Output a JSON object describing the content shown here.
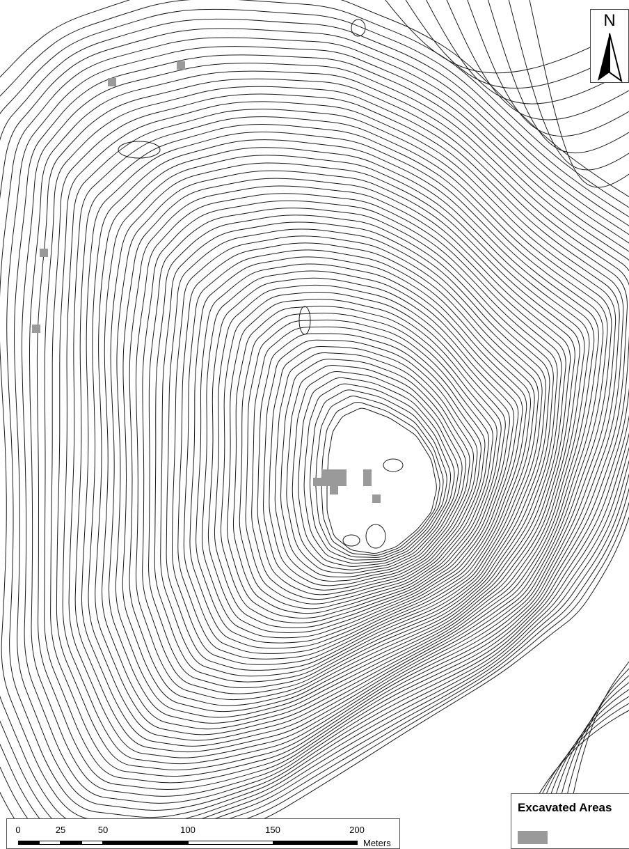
{
  "north_arrow": {
    "letter": "N"
  },
  "scale_bar": {
    "ticks": [
      "0",
      "25",
      "50",
      "100",
      "150",
      "200"
    ],
    "tick_values": [
      0,
      25,
      50,
      100,
      150,
      200
    ],
    "units": "Meters"
  },
  "legend": {
    "title": "Excavated Areas",
    "swatch_color": "#9a9a9a"
  },
  "colors": {
    "contour": "#1a1a1a",
    "excavation": "#9a9a9a",
    "background": "#ffffff"
  }
}
